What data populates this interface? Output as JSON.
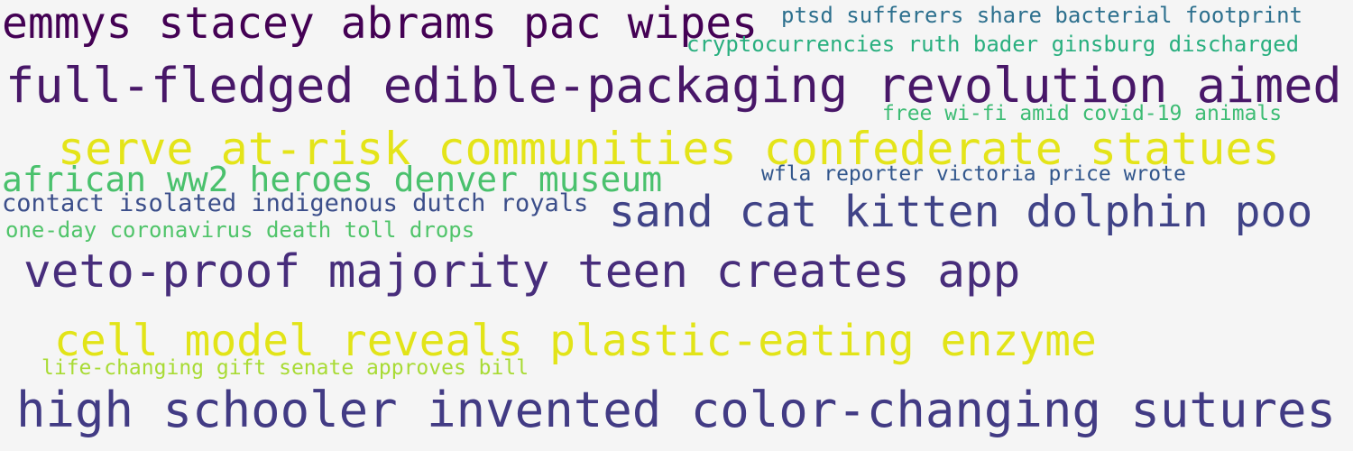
{
  "word_cloud": {
    "background": "#f5f5f5",
    "phrases": [
      {
        "text": "emmys stacey abrams pac wipes",
        "color": "#440154"
      },
      {
        "text": "ptsd sufferers share bacterial footprint",
        "color": "#2d708e"
      },
      {
        "text": "cryptocurrencies ruth bader ginsburg discharged",
        "color": "#29af7f"
      },
      {
        "text": "full-fledged edible-packaging revolution aimed",
        "color": "#481768"
      },
      {
        "text": "free wi-fi amid covid-19 animals",
        "color": "#3dbc74"
      },
      {
        "text": "serve at-risk communities confederate statues",
        "color": "#e4e419"
      },
      {
        "text": "african ww2 heroes denver museum",
        "color": "#4ac16d"
      },
      {
        "text": "wfla reporter victoria price wrote",
        "color": "#31568c"
      },
      {
        "text": "contact isolated indigenous dutch royals",
        "color": "#3b4e8a"
      },
      {
        "text": "sand cat kitten dolphin poo",
        "color": "#404387"
      },
      {
        "text": "one-day coronavirus death toll drops",
        "color": "#50c46a"
      },
      {
        "text": "veto-proof majority teen creates app",
        "color": "#472d7b"
      },
      {
        "text": "cell model reveals plastic-eating enzyme",
        "color": "#e2e418"
      },
      {
        "text": "life-changing gift senate approves bill",
        "color": "#a8db34"
      },
      {
        "text": "high schooler invented color-changing sutures",
        "color": "#423b84"
      }
    ]
  }
}
